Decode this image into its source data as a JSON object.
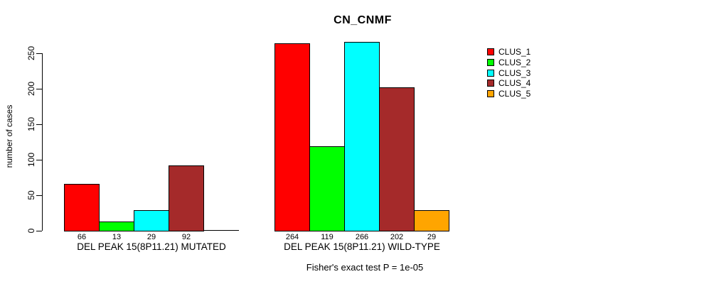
{
  "chart_data": {
    "type": "bar",
    "title": "CN_CNMF",
    "ylabel": "number of cases",
    "xlabel": "",
    "ylim": [
      0,
      250
    ],
    "yticks": [
      0,
      50,
      100,
      150,
      200,
      250
    ],
    "grid": false,
    "legend_position": "right",
    "series": [
      {
        "name": "CLUS_1",
        "color": "#FF0000",
        "values": [
          66,
          264
        ]
      },
      {
        "name": "CLUS_2",
        "color": "#00FF00",
        "values": [
          13,
          119
        ]
      },
      {
        "name": "CLUS_3",
        "color": "#00FFFF",
        "values": [
          29,
          266
        ]
      },
      {
        "name": "CLUS_4",
        "color": "#A52A2A",
        "values": [
          92,
          202
        ]
      },
      {
        "name": "CLUS_5",
        "color": "#FFA500",
        "values": [
          0,
          29
        ]
      }
    ],
    "categories": [
      "DEL PEAK 15(8P11.21) MUTATED",
      "DEL PEAK 15(8P11.21) WILD-TYPE"
    ],
    "bar_value_labels": [
      [
        "66",
        "13",
        "29",
        "92",
        ""
      ],
      [
        "264",
        "119",
        "266",
        "202",
        "29"
      ]
    ],
    "annotation": "Fisher's exact test P = 1e-05"
  }
}
